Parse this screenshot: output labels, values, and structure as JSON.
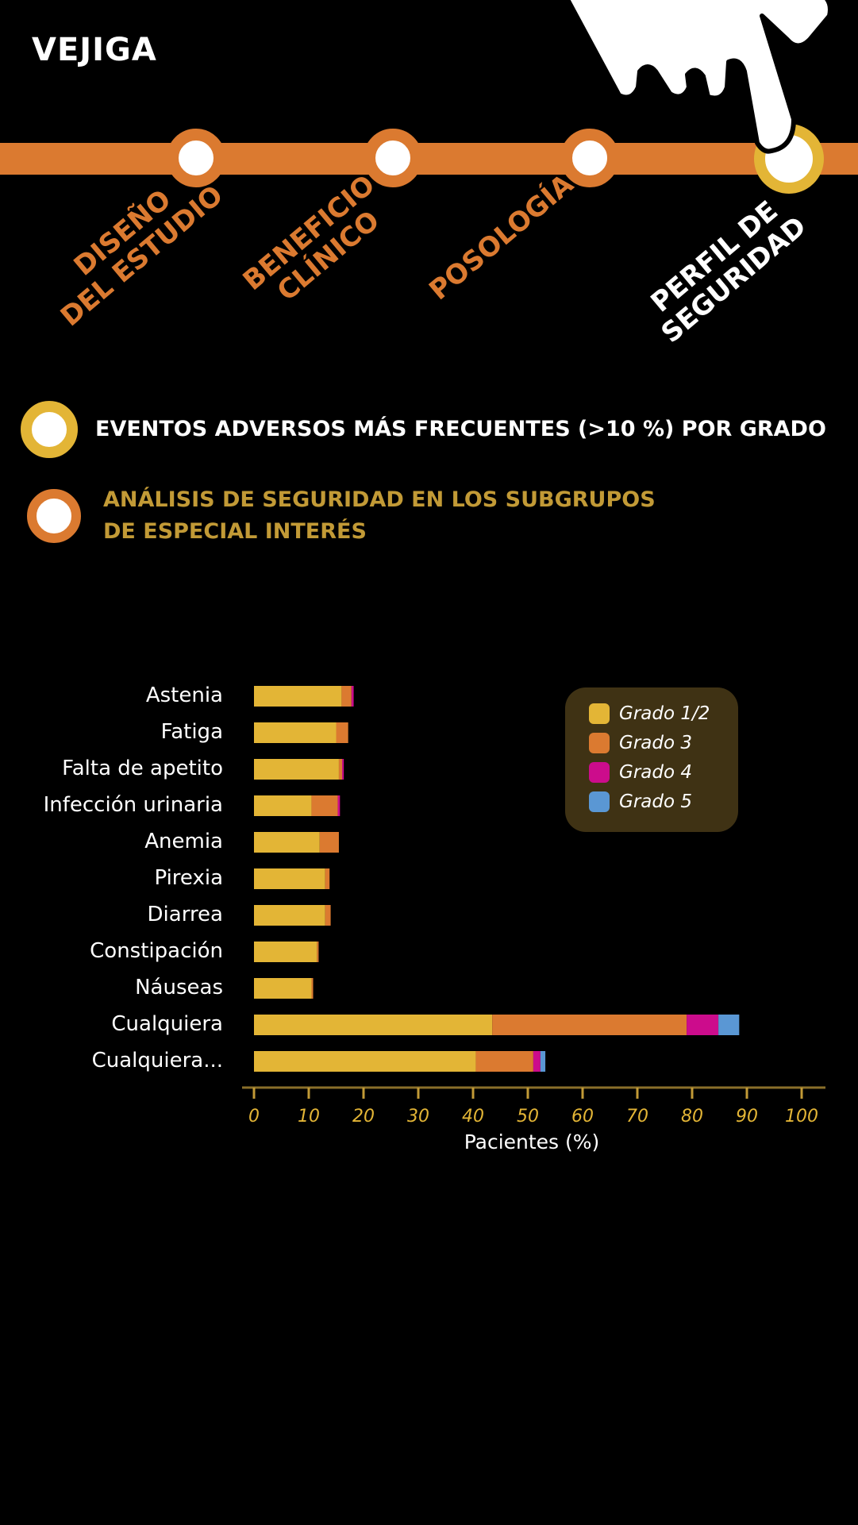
{
  "header": {
    "title": "VEJIGA"
  },
  "steps": [
    {
      "line1": "DISEÑO",
      "line2": "DEL ESTUDIO",
      "active": false
    },
    {
      "line1": "BENEFICIO",
      "line2": "CLÍNICO",
      "active": false
    },
    {
      "line1": "POSOLOGÍA",
      "line2": "",
      "active": false
    },
    {
      "line1": "PERFIL DE",
      "line2": "SEGURIDAD",
      "active": true
    }
  ],
  "sections": [
    {
      "label": "EVENTOS ADVERSOS MÁS FRECUENTES (>10 %) POR GRADO",
      "active": true
    },
    {
      "line1": "ANÁLISIS DE SEGURIDAD EN LOS SUBGRUPOS",
      "line2": "DE ESPECIAL INTERÉS",
      "active": false
    }
  ],
  "colors": {
    "orange": "#DB7A30",
    "gold": "#E3B536",
    "magenta": "#CC0C8C",
    "blue": "#5A97D4",
    "legend_bg": "#3F3214"
  },
  "chart_data": {
    "type": "bar",
    "orientation": "horizontal",
    "stacked": true,
    "categories": [
      "Astenia",
      "Fatiga",
      "Falta de apetito",
      "Infección urinaria",
      "Anemia",
      "Pirexia",
      "Diarrea",
      "Constipación",
      "Náuseas",
      "Cualquiera",
      "Cualquiera..."
    ],
    "series": [
      {
        "name": "Grado 1/2",
        "color": "#E3B536",
        "values": [
          16,
          15,
          15.5,
          10.5,
          12,
          13,
          13,
          11.5,
          10.5,
          43.5,
          40.5
        ]
      },
      {
        "name": "Grado 3",
        "color": "#DB7A30",
        "values": [
          1.8,
          2.2,
          0.6,
          4.8,
          3.5,
          0.8,
          1.0,
          0.3,
          0.3,
          35.5,
          10.5
        ]
      },
      {
        "name": "Grado 4",
        "color": "#CC0C8C",
        "values": [
          0.4,
          0,
          0.3,
          0.4,
          0,
          0,
          0,
          0,
          0,
          5.8,
          1.3
        ]
      },
      {
        "name": "Grado 5",
        "color": "#5A97D4",
        "values": [
          0,
          0,
          0,
          0,
          0,
          0,
          0,
          0,
          0,
          3.8,
          0.9
        ]
      }
    ],
    "xlim": [
      0,
      100
    ],
    "xticks": [
      "0",
      "10",
      "20",
      "30",
      "40",
      "50",
      "60",
      "70",
      "80",
      "90",
      "100"
    ],
    "xlabel": "Pacientes (%)",
    "ylabel": "",
    "legend_position": "top-right"
  }
}
